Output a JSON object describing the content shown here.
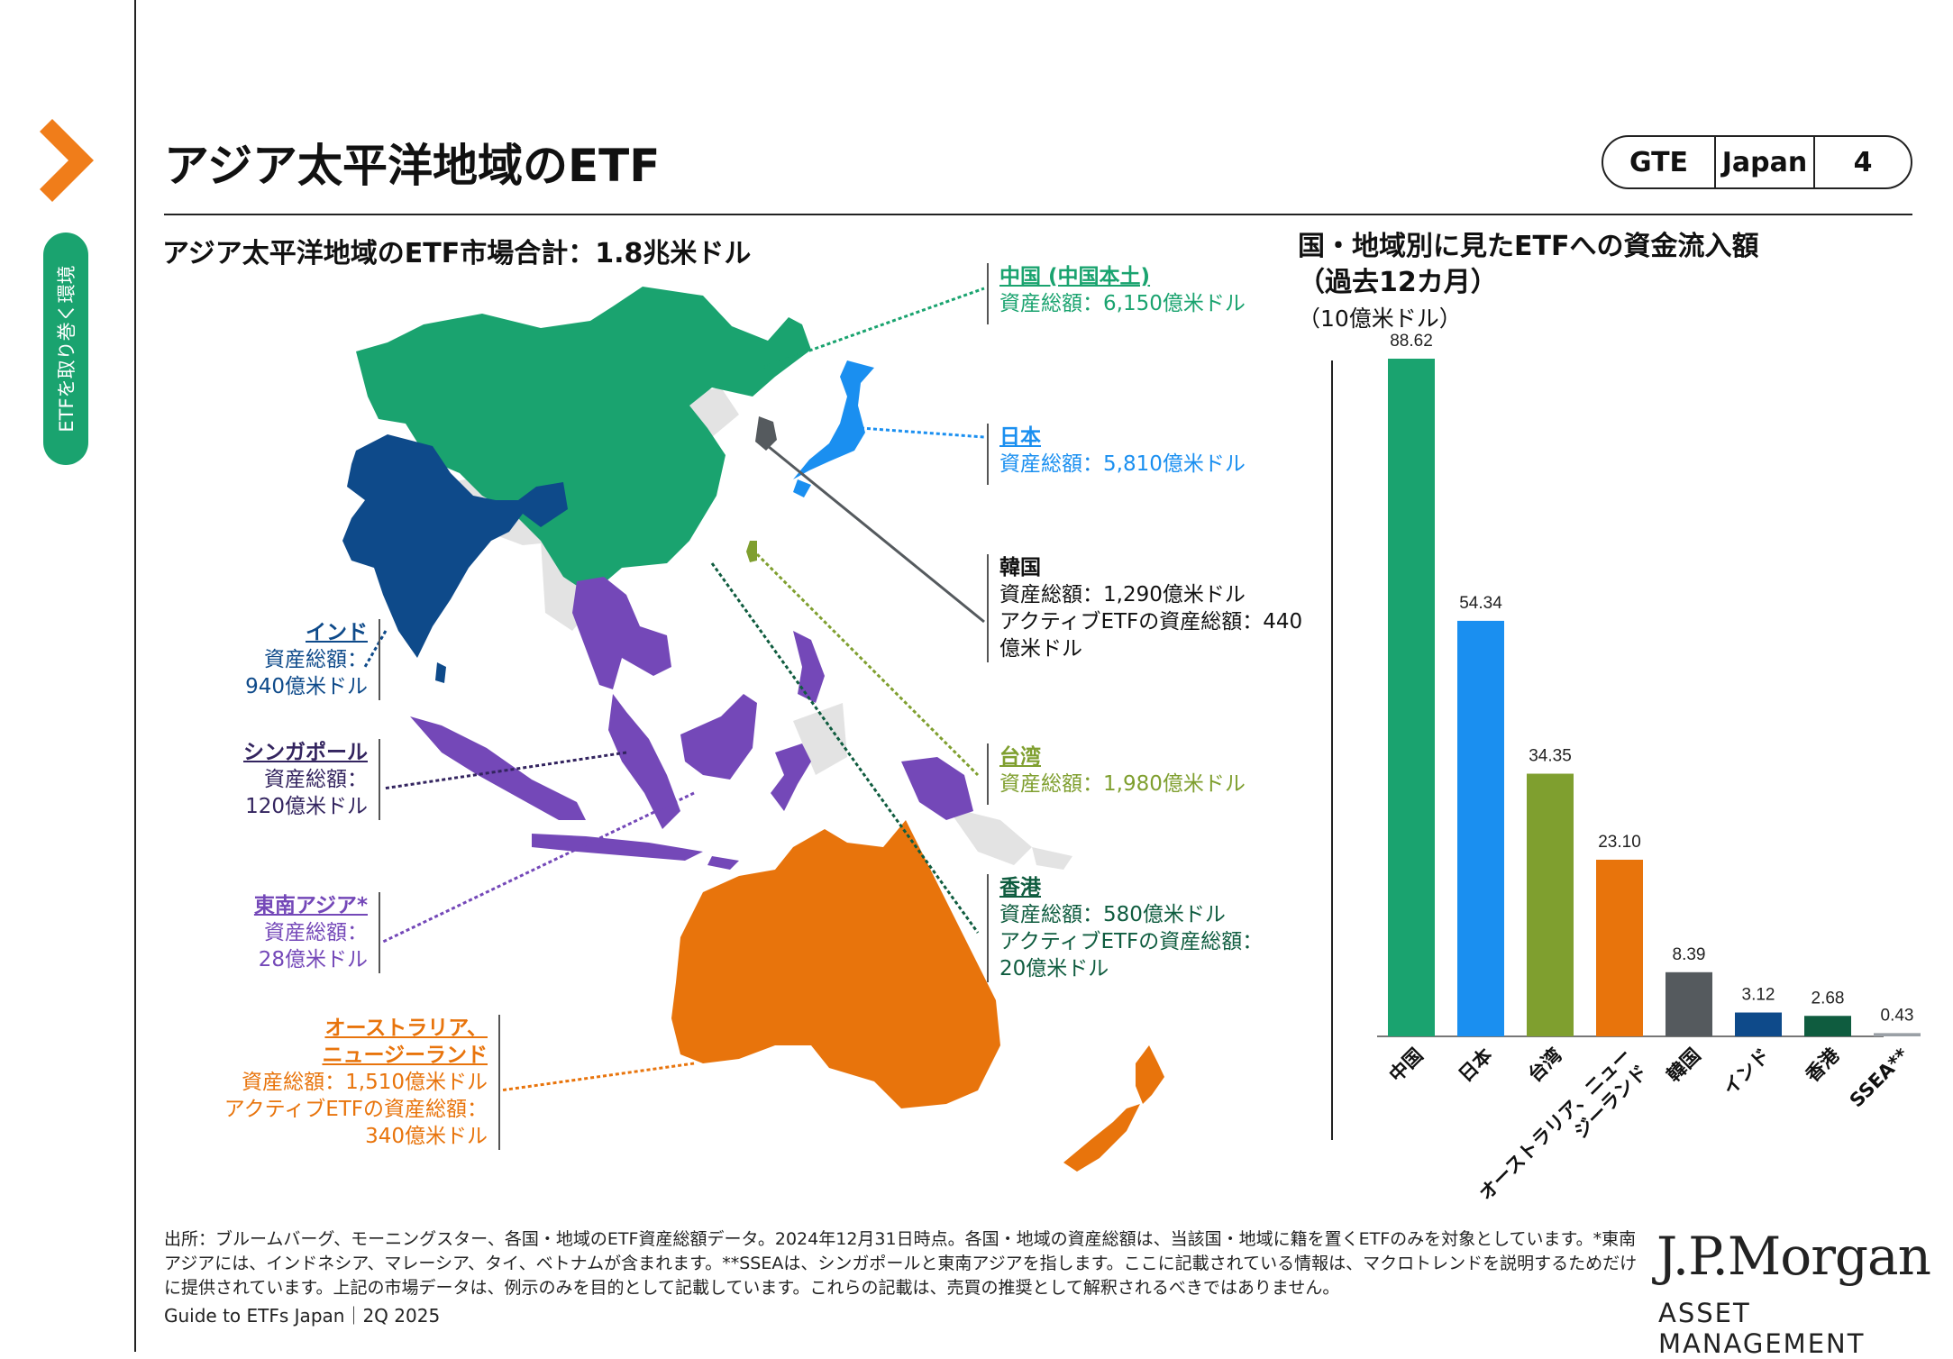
{
  "side_tab": "ETFを取り巻く環境",
  "title": "アジア太平洋地域のETF",
  "badge": {
    "section": "GTE",
    "region": "Japan",
    "page": "4"
  },
  "map": {
    "title": "アジア太平洋地域のETF市場合計：1.8兆米ドル",
    "labels": {
      "china": {
        "name": "中国 (中国本土)",
        "lines": [
          "資産総額：6,150億米ドル"
        ]
      },
      "japan": {
        "name": "日本",
        "lines": [
          "資産総額：5,810億米ドル"
        ]
      },
      "korea": {
        "name": "韓国",
        "lines": [
          "資産総額：1,290億米ドル",
          "アクティブETFの資産総額：440",
          "億米ドル"
        ]
      },
      "taiwan": {
        "name": "台湾",
        "lines": [
          "資産総額：1,980億米ドル"
        ]
      },
      "hongkong": {
        "name": "香港",
        "lines": [
          "資産総額：580億米ドル",
          "アクティブETFの資産総額：",
          "20億米ドル"
        ]
      },
      "india": {
        "name": "インド",
        "lines": [
          "資産総額：",
          "940億米ドル"
        ]
      },
      "singapore": {
        "name": "シンガポール",
        "lines": [
          "資産総額：",
          "120億米ドル"
        ]
      },
      "sea": {
        "name": "東南アジア*",
        "lines": [
          "資産総額：",
          "28億米ドル"
        ]
      },
      "anz": {
        "name_lines": [
          "オーストラリア、",
          "ニュージーランド"
        ],
        "lines": [
          "資産総額：1,510億米ドル",
          "アクティブETFの資産総額：",
          "340億米ドル"
        ]
      }
    },
    "colors": {
      "china": "#1aa36f",
      "japan": "#1a8ff0",
      "korea": "#555a5e",
      "taiwan": "#7f9f2f",
      "hongkong": "#0f5c3f",
      "india": "#0e4a8a",
      "sea": "#7448b8",
      "singapore": "#33245f",
      "anz": "#e8740c",
      "other": "#e3e3e3"
    }
  },
  "chart_data": {
    "type": "bar",
    "title": "国・地域別に見たETFへの資金流入額\n（過去12カ月）",
    "title_lines": [
      "国・地域別に見たETFへの資金流入額",
      "（過去12カ月）"
    ],
    "unit": "（10億米ドル）",
    "categories": [
      "中国",
      "日本",
      "台湾",
      "オーストラリア、ニュー\nジーランド",
      "韓国",
      "インド",
      "香港",
      "SSEA**"
    ],
    "category_lines": [
      [
        "中国"
      ],
      [
        "日本"
      ],
      [
        "台湾"
      ],
      [
        "オーストラリア、ニュー",
        "ジーランド"
      ],
      [
        "韓国"
      ],
      [
        "インド"
      ],
      [
        "香港"
      ],
      [
        "SSEA**"
      ]
    ],
    "values": [
      88.62,
      54.34,
      34.35,
      23.1,
      8.39,
      3.12,
      2.68,
      0.43
    ],
    "value_labels": [
      "88.62",
      "54.34",
      "34.35",
      "23.10",
      "8.39",
      "3.12",
      "2.68",
      "0.43"
    ],
    "colors": [
      "#1aa36f",
      "#1a8ff0",
      "#7f9f2f",
      "#e8740c",
      "#555a5e",
      "#0e4a8a",
      "#0f5c3f",
      "#9aa0a6"
    ],
    "ylim": [
      0,
      88.62
    ],
    "grid": false
  },
  "footnote": "出所：ブルームバーグ、モーニングスター、各国・地域のETF資産総額データ。2024年12月31日時点。各国・地域の資産総額は、当該国・地域に籍を置くETFのみを対象としています。*東南アジアには、インドネシア、マレーシア、タイ、ベトナムが含まれます。**SSEAは、シンガポールと東南アジアを指します。ここに記載されている情報は、マクロトレンドを説明するためだけに提供されています。上記の市場データは、例示のみを目的として記載しています。これらの記載は、売買の推奨として解釈されるべきではありません。",
  "footer_source": "Guide to ETFs Japan｜2Q 2025",
  "logo": {
    "main": "J.P.Morgan",
    "sub": "ASSET MANAGEMENT"
  }
}
